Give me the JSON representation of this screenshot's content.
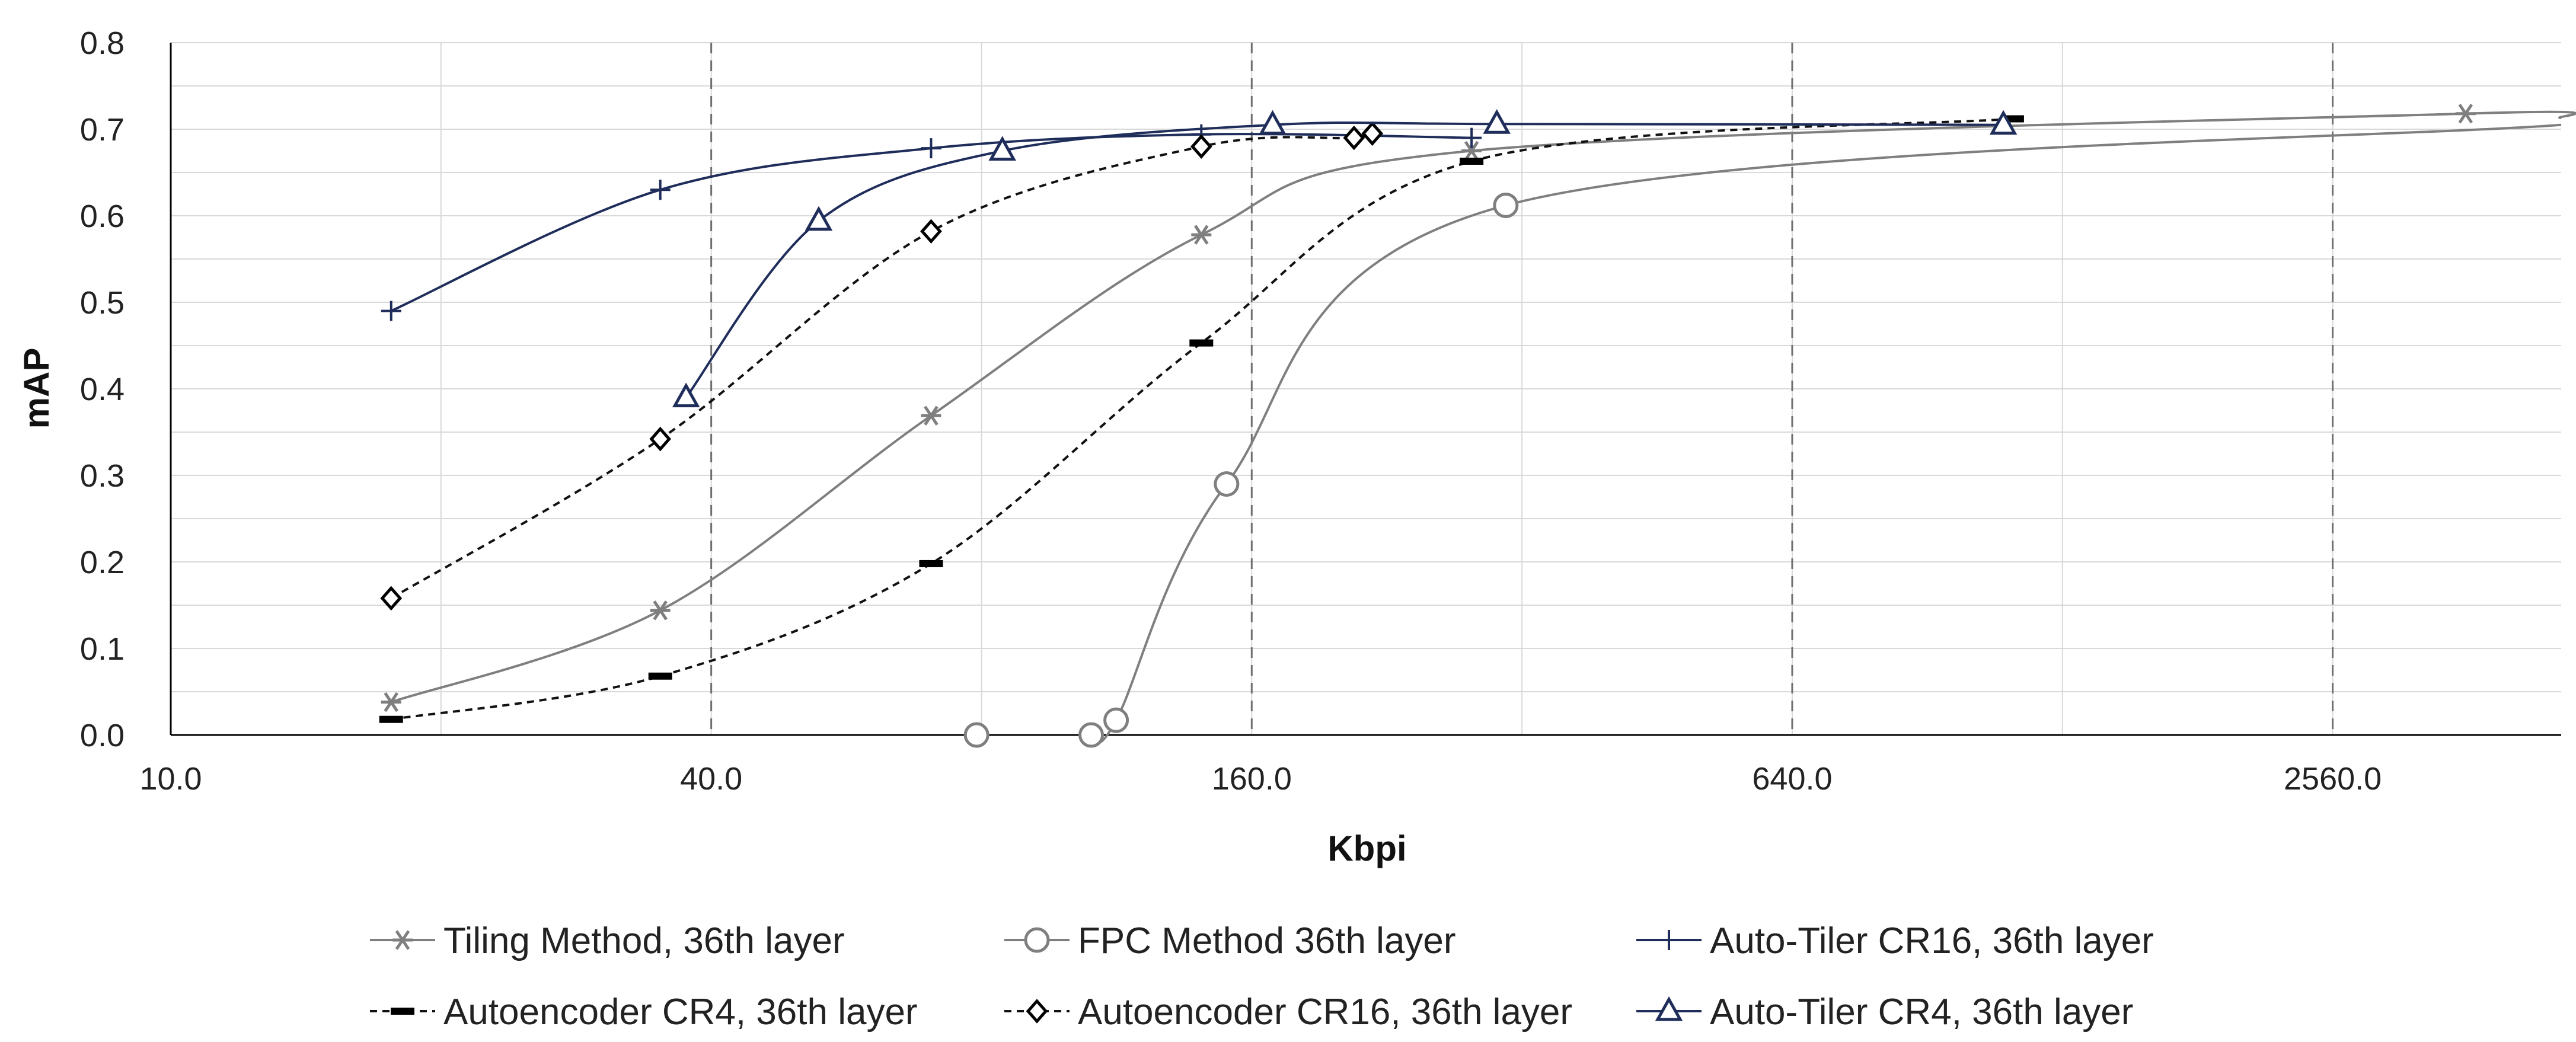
{
  "chart_data": {
    "type": "line",
    "title": "",
    "xlabel": "Kbpi",
    "ylabel": "mAP",
    "x_scale": "log2",
    "xlim": [
      10,
      4600
    ],
    "ylim": [
      0,
      0.8
    ],
    "x_ticks": [
      {
        "value": 10,
        "label": "10.0"
      },
      {
        "value": 40,
        "label": "40.0"
      },
      {
        "value": 160,
        "label": "160.0"
      },
      {
        "value": 640,
        "label": "640.0"
      },
      {
        "value": 2560,
        "label": "2560.0"
      }
    ],
    "y_ticks": [
      {
        "value": 0.0,
        "label": "0.0"
      },
      {
        "value": 0.1,
        "label": "0.1"
      },
      {
        "value": 0.2,
        "label": "0.2"
      },
      {
        "value": 0.3,
        "label": "0.3"
      },
      {
        "value": 0.4,
        "label": "0.4"
      },
      {
        "value": 0.5,
        "label": "0.5"
      },
      {
        "value": 0.6,
        "label": "0.6"
      },
      {
        "value": 0.7,
        "label": "0.7"
      },
      {
        "value": 0.8,
        "label": "0.8"
      }
    ],
    "dashed_verticals": [
      40,
      160,
      640,
      2560
    ],
    "legend_position": "bottom",
    "series": [
      {
        "name": "Tiling Method, 36th layer",
        "color": "#7f7f7f",
        "dash": "solid",
        "marker": "asterisk",
        "marker_color": "#7f7f7f",
        "points": [
          [
            17.6,
            0.038
          ],
          [
            35.1,
            0.144
          ],
          [
            70.3,
            0.369
          ],
          [
            140.6,
            0.578
          ],
          [
            281.2,
            0.675
          ],
          [
            3600,
            0.718
          ],
          [
            4600,
            0.713
          ]
        ],
        "marker_count": 6
      },
      {
        "name": "FPC Method 36th layer",
        "color": "#7f7f7f",
        "dash": "solid",
        "marker": "circle",
        "marker_color": "#7f7f7f",
        "points": [
          [
            106,
            0.0
          ],
          [
            113,
            0.017
          ],
          [
            150,
            0.29
          ],
          [
            307,
            0.612
          ],
          [
            4600,
            0.705
          ]
        ],
        "extra_markers": [
          [
            79,
            0.0
          ]
        ],
        "marker_count": 4
      },
      {
        "name": "Auto-Tiler CR16, 36th layer",
        "color": "#1f2d5a",
        "dash": "solid",
        "marker": "plus",
        "marker_color": "#1f2d5a",
        "points": [
          [
            17.6,
            0.49
          ],
          [
            35.1,
            0.63
          ],
          [
            70.3,
            0.678
          ],
          [
            140.6,
            0.694
          ],
          [
            281.2,
            0.69
          ]
        ],
        "marker_count": 5
      },
      {
        "name": "Autoencoder CR4, 36th layer",
        "color": "#111111",
        "dash": "dashed",
        "marker": "bar",
        "marker_color": "#000000",
        "points": [
          [
            17.6,
            0.018
          ],
          [
            35.1,
            0.068
          ],
          [
            70.3,
            0.198
          ],
          [
            140.6,
            0.453
          ],
          [
            281.2,
            0.663
          ],
          [
            1125,
            0.712
          ]
        ],
        "marker_count": 6
      },
      {
        "name": "Autoencoder CR16, 36th layer",
        "color": "#111111",
        "dash": "dashed",
        "marker": "diamond",
        "marker_color": "#000000",
        "points": [
          [
            17.6,
            0.158
          ],
          [
            35.1,
            0.342
          ],
          [
            70.3,
            0.582
          ],
          [
            140.6,
            0.68
          ],
          [
            208,
            0.69
          ],
          [
            218,
            0.695
          ]
        ],
        "marker_count": 6
      },
      {
        "name": "Auto-Tiler CR4, 36th layer",
        "color": "#1f2d5a",
        "dash": "solid",
        "marker": "triangle",
        "marker_color": "#1f2d5a",
        "points": [
          [
            37.5,
            0.39
          ],
          [
            52.7,
            0.594
          ],
          [
            84.4,
            0.675
          ],
          [
            168.8,
            0.705
          ],
          [
            300,
            0.706
          ],
          [
            1100,
            0.705
          ]
        ],
        "marker_count": 6
      }
    ]
  }
}
